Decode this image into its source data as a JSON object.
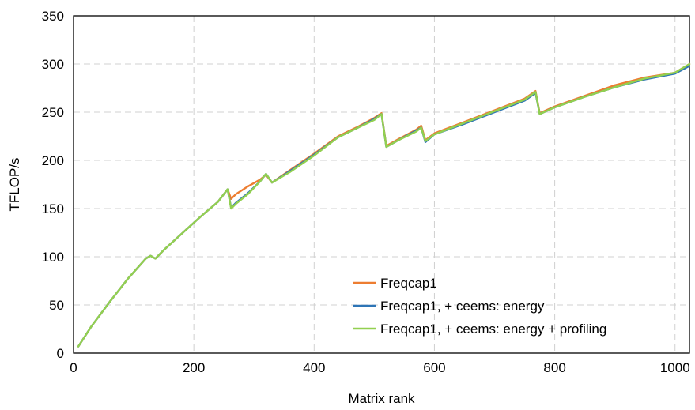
{
  "chart_data": {
    "type": "line",
    "title": "",
    "xlabel": "Matrix rank",
    "ylabel": "TFLOP/s",
    "xlim": [
      0,
      1024
    ],
    "ylim": [
      0,
      350
    ],
    "xticks": [
      0,
      200,
      400,
      600,
      800,
      1000
    ],
    "yticks": [
      0,
      50,
      100,
      150,
      200,
      250,
      300,
      350
    ],
    "grid": true,
    "grid_style": "dashed",
    "legend_position": "bottom-right",
    "series": [
      {
        "name": "Freqcap1",
        "color": "#ED7D31",
        "x": [
          8,
          30,
          60,
          90,
          120,
          128,
          136,
          150,
          180,
          210,
          240,
          256,
          262,
          270,
          290,
          310,
          320,
          330,
          360,
          400,
          440,
          470,
          500,
          512,
          520,
          540,
          570,
          578,
          585,
          600,
          650,
          700,
          750,
          768,
          775,
          800,
          850,
          900,
          950,
          1000,
          1024
        ],
        "y": [
          7,
          28,
          53,
          77,
          98,
          101,
          98,
          107,
          124,
          141,
          157,
          170,
          160,
          165,
          173,
          180,
          185,
          177,
          190,
          207,
          225,
          234,
          244,
          249,
          215,
          222,
          232,
          236,
          221,
          228,
          240,
          252,
          264,
          272,
          249,
          256,
          267,
          278,
          286,
          291,
          300
        ]
      },
      {
        "name": "Freqcap1, + ceems: energy",
        "color": "#2E75B6",
        "x": [
          8,
          30,
          60,
          90,
          120,
          128,
          136,
          150,
          180,
          210,
          240,
          256,
          262,
          270,
          290,
          310,
          320,
          330,
          360,
          400,
          440,
          470,
          500,
          512,
          520,
          540,
          570,
          578,
          585,
          600,
          650,
          700,
          750,
          768,
          775,
          800,
          850,
          900,
          950,
          1000,
          1024
        ],
        "y": [
          7,
          28,
          53,
          77,
          98,
          101,
          98,
          107,
          124,
          141,
          157,
          170,
          151,
          156,
          166,
          178,
          186,
          177,
          189,
          206,
          224,
          233,
          243,
          248,
          214,
          221,
          231,
          234,
          219,
          227,
          238,
          250,
          262,
          270,
          248,
          255,
          266,
          276,
          284,
          290,
          298
        ]
      },
      {
        "name": "Freqcap1, + ceems: energy + profiling",
        "color": "#92D050",
        "x": [
          8,
          30,
          60,
          90,
          120,
          128,
          136,
          150,
          180,
          210,
          240,
          256,
          262,
          270,
          290,
          310,
          320,
          330,
          360,
          400,
          440,
          470,
          500,
          512,
          520,
          540,
          570,
          578,
          585,
          600,
          650,
          700,
          750,
          768,
          775,
          800,
          850,
          900,
          950,
          1000,
          1024
        ],
        "y": [
          7,
          28,
          53,
          77,
          98,
          101,
          98,
          107,
          124,
          141,
          157,
          170,
          150,
          155,
          165,
          178,
          186,
          177,
          188,
          205,
          224,
          233,
          242,
          248,
          214,
          221,
          230,
          234,
          220,
          227,
          239,
          251,
          263,
          271,
          248,
          255,
          266,
          276,
          285,
          291,
          300
        ]
      }
    ]
  }
}
